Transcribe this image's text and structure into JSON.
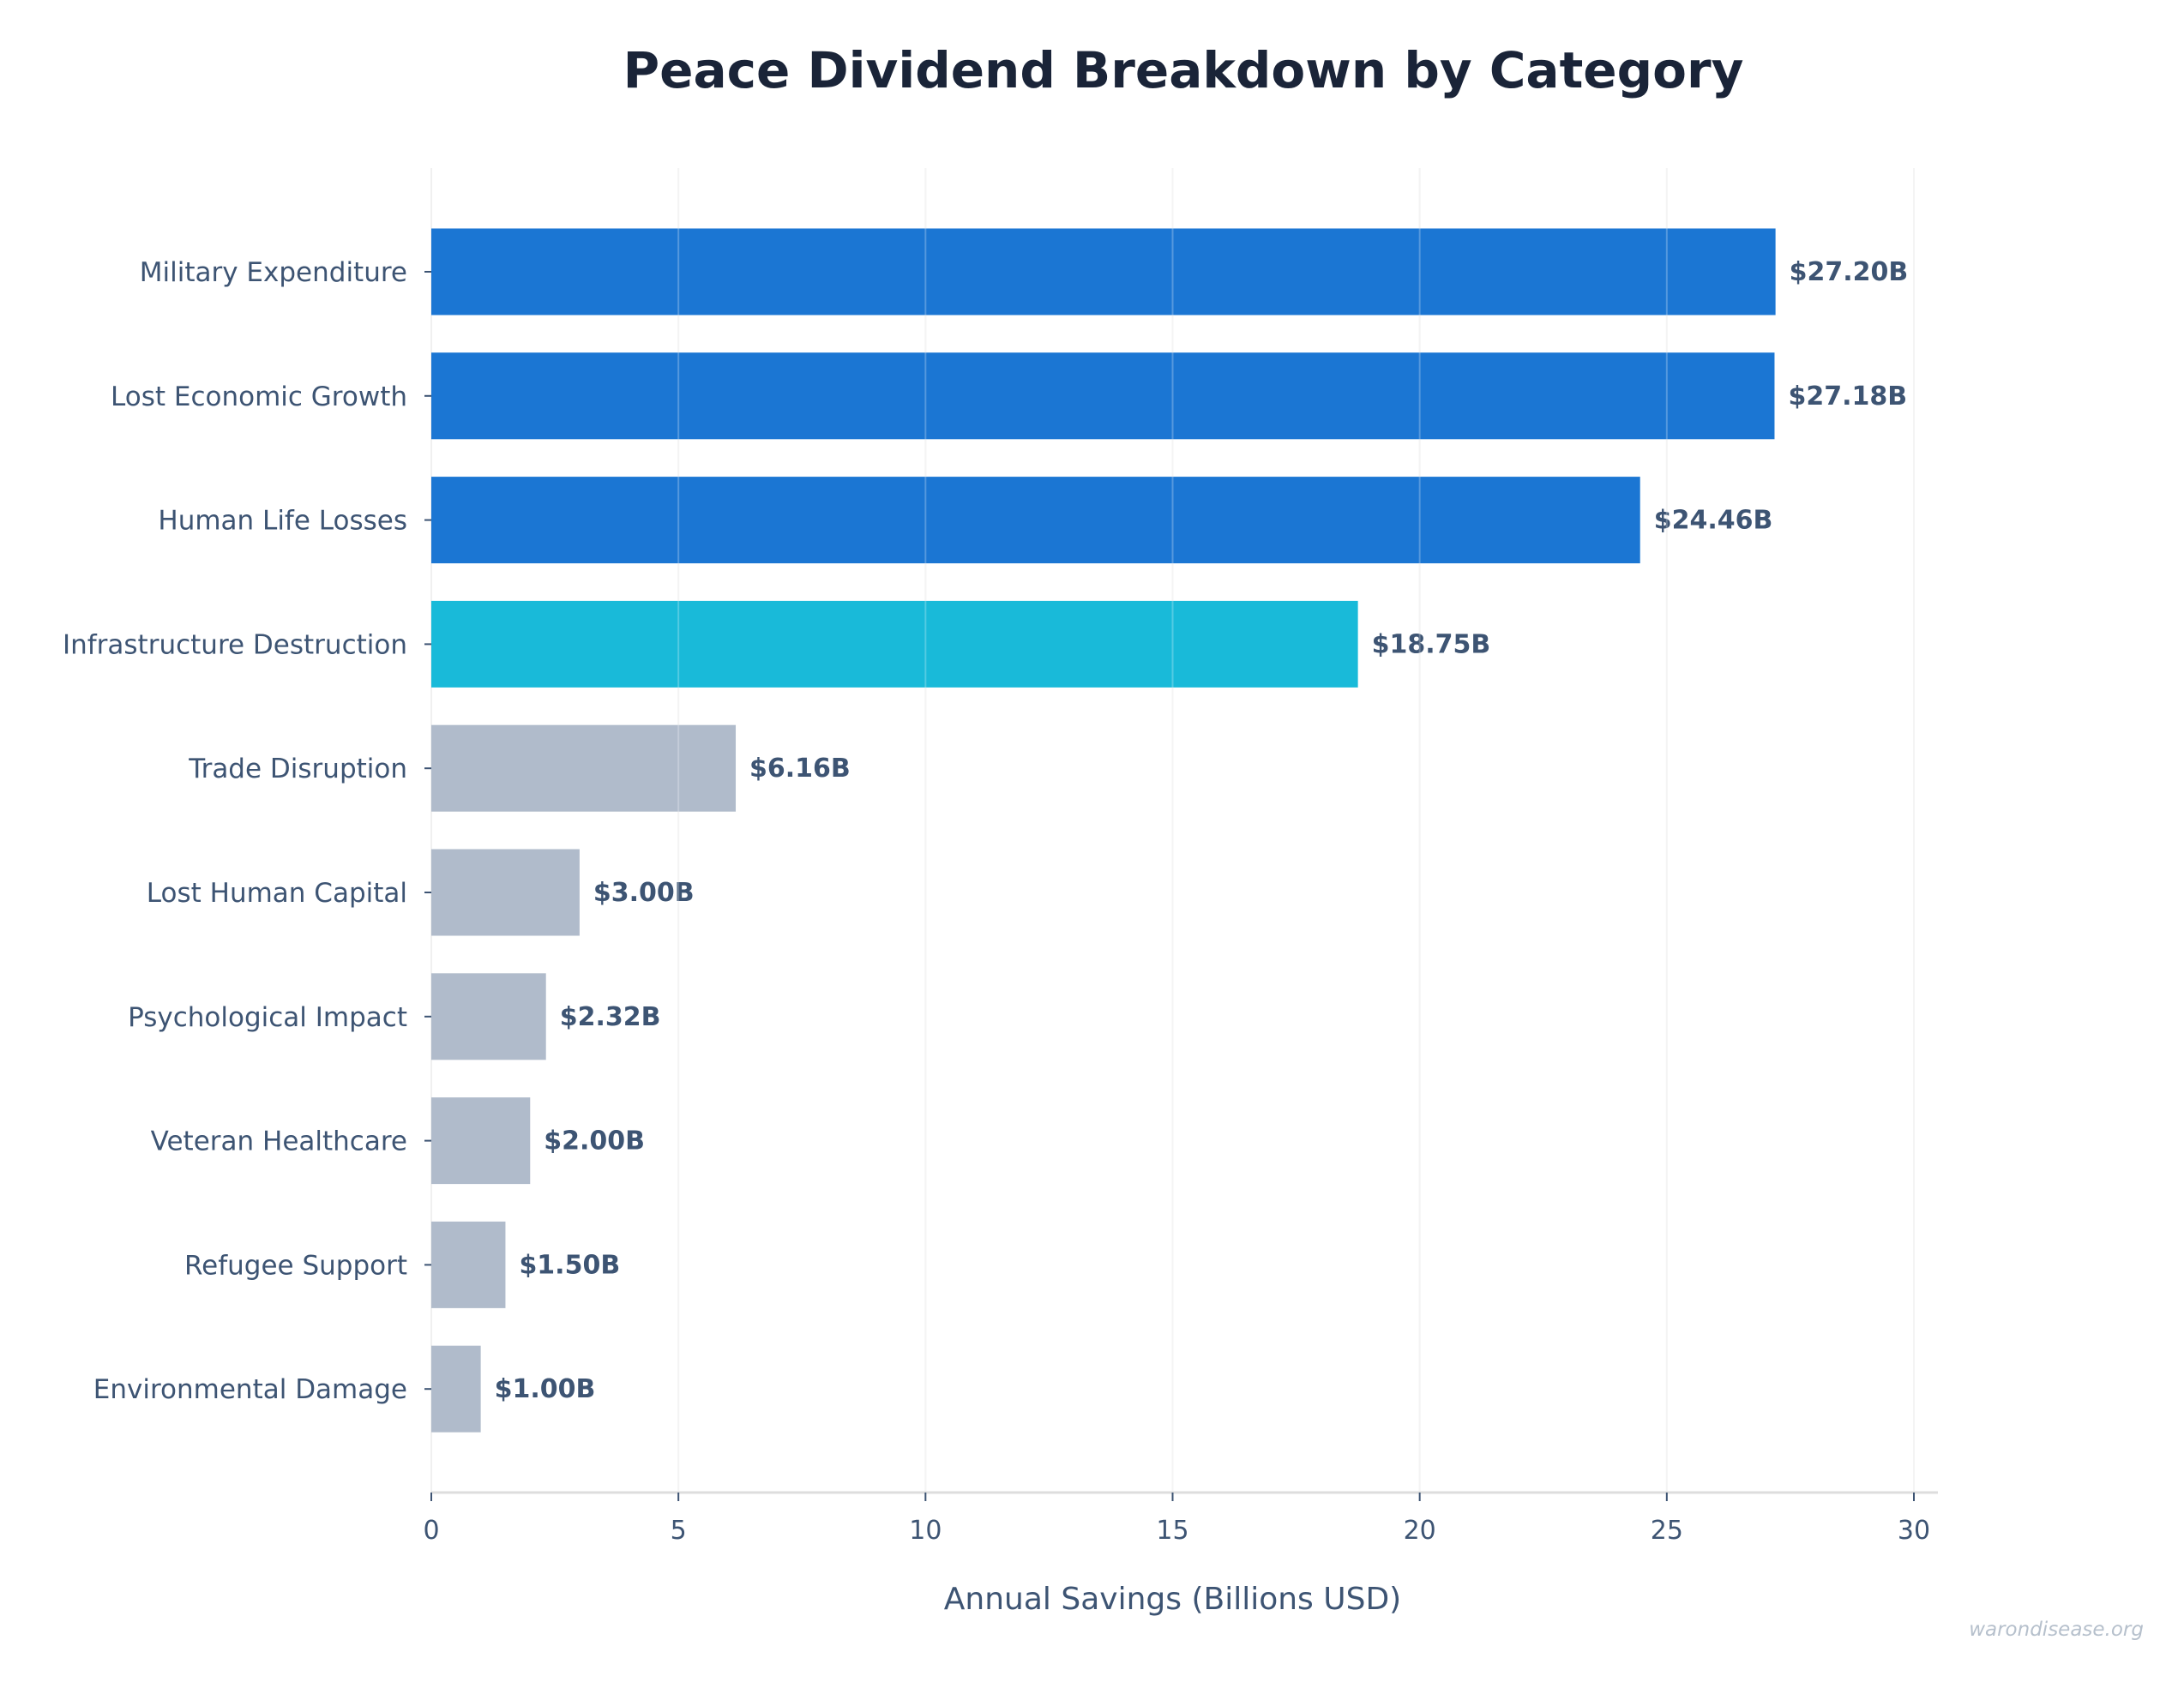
{
  "chart_data": {
    "type": "bar",
    "orientation": "horizontal",
    "title": "Peace Dividend Breakdown by Category",
    "xlabel": "Annual Savings (Billions USD)",
    "ylabel": "",
    "xlim": [
      0,
      30.5
    ],
    "xticks": [
      0,
      5,
      10,
      15,
      20,
      25,
      30
    ],
    "grid": "vertical",
    "categories": [
      "Military Expenditure",
      "Lost Economic Growth",
      "Human Life Losses",
      "Infrastructure Destruction",
      "Trade Disruption",
      "Lost Human Capital",
      "Psychological Impact",
      "Veteran Healthcare",
      "Refugee Support",
      "Environmental Damage"
    ],
    "values": [
      27.2,
      27.18,
      24.46,
      18.75,
      6.16,
      3.0,
      2.32,
      2.0,
      1.5,
      1.0
    ],
    "data_labels": [
      "$27.20B",
      "$27.18B",
      "$24.46B",
      "$18.75B",
      "$6.16B",
      "$3.00B",
      "$2.32B",
      "$2.00B",
      "$1.50B",
      "$1.00B"
    ],
    "bar_colors": [
      "#1b76d3",
      "#1b76d3",
      "#1b76d3",
      "#19bad9",
      "#b0bbcb",
      "#b0bbcb",
      "#b0bbcb",
      "#b0bbcb",
      "#b0bbcb",
      "#b0bbcb"
    ],
    "text_color": "#3d5473"
  },
  "watermark": "warondisease.org"
}
